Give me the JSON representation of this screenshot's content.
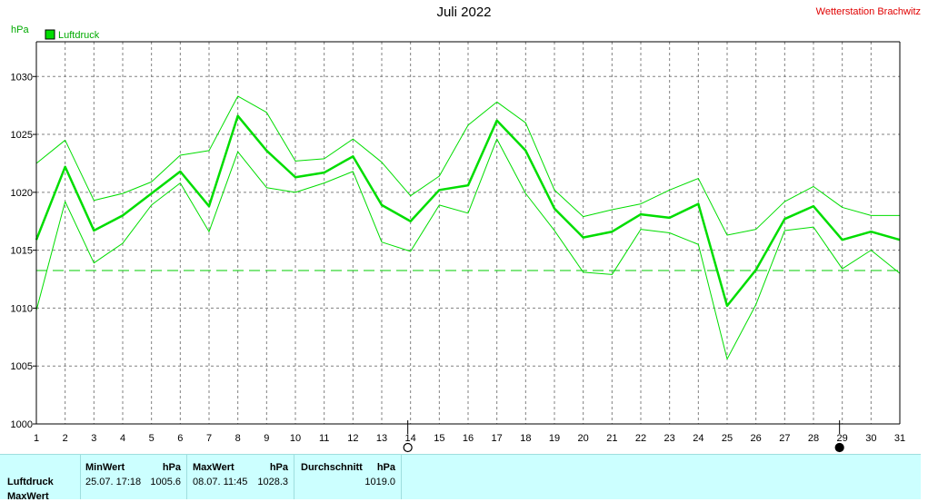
{
  "title": "Juli 2022",
  "station": "Wetterstation Brachwitz",
  "chart_data": {
    "type": "line",
    "ylabel": "hPa",
    "ylim": [
      1000,
      1033
    ],
    "yticks": [
      1000,
      1005,
      1010,
      1015,
      1020,
      1025,
      1030
    ],
    "x": [
      1,
      2,
      3,
      4,
      5,
      6,
      7,
      8,
      9,
      10,
      11,
      12,
      13,
      14,
      15,
      16,
      17,
      18,
      19,
      20,
      21,
      22,
      23,
      24,
      25,
      26,
      27,
      28,
      29,
      30,
      31
    ],
    "legend": [
      "Luftdruck"
    ],
    "series": [
      {
        "name": "Luftdruck",
        "role": "mean",
        "values": [
          1015.9,
          1022.2,
          1016.7,
          1018.0,
          1019.9,
          1021.8,
          1018.8,
          1026.6,
          1023.6,
          1021.3,
          1021.7,
          1023.1,
          1018.9,
          1017.5,
          1020.2,
          1020.6,
          1026.2,
          1023.6,
          1018.6,
          1016.1,
          1016.6,
          1018.1,
          1017.8,
          1019.0,
          1010.2,
          1013.3,
          1017.7,
          1018.8,
          1015.9,
          1016.6,
          1015.9
        ]
      },
      {
        "role": "max",
        "values": [
          1022.5,
          1024.5,
          1019.3,
          1019.9,
          1020.9,
          1023.2,
          1023.6,
          1028.3,
          1026.9,
          1022.7,
          1022.9,
          1024.6,
          1022.6,
          1019.7,
          1021.4,
          1025.8,
          1027.8,
          1026.0,
          1020.2,
          1017.9,
          1018.5,
          1019.0,
          1020.2,
          1021.2,
          1016.3,
          1016.8,
          1019.2,
          1020.5,
          1018.7,
          1018.0,
          1018.0
        ]
      },
      {
        "role": "min",
        "values": [
          1009.8,
          1019.2,
          1013.9,
          1015.6,
          1018.9,
          1020.8,
          1016.6,
          1023.5,
          1020.4,
          1020.0,
          1020.8,
          1021.8,
          1015.7,
          1014.9,
          1018.9,
          1018.2,
          1024.6,
          1019.9,
          1016.7,
          1013.1,
          1012.9,
          1016.8,
          1016.5,
          1015.5,
          1005.6,
          1010.3,
          1016.7,
          1017.0,
          1013.4,
          1015.0,
          1013.0
        ]
      }
    ],
    "reference_line": 1013.25,
    "moon_markers": [
      {
        "day": 14,
        "phase": "full"
      },
      {
        "day": 29,
        "phase": "new"
      }
    ],
    "grid": true
  },
  "colors": {
    "line": "#00dd00",
    "ref": "#00cc00",
    "grid": "#808080"
  },
  "stats": {
    "row1": "Luftdruck",
    "row2": "MaxWert",
    "min_header": "MinWert",
    "max_header": "MaxWert",
    "avg_header": "Durchschnitt",
    "unit": "hPa",
    "min_time": "25.07.  17:18",
    "min_value": "1005.6",
    "max_time": "08.07.  11:45",
    "max_value": "1028.3",
    "avg_value": "1019.0"
  }
}
